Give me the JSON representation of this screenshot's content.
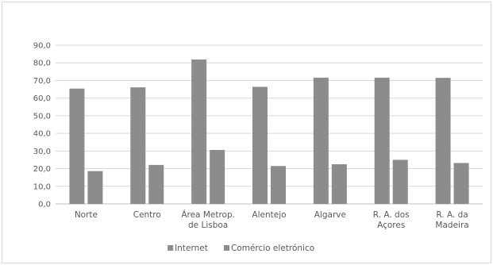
{
  "chart_data": {
    "type": "bar",
    "categories": [
      [
        "Norte"
      ],
      [
        "Centro"
      ],
      [
        "Área Metrop.",
        "de Lisboa"
      ],
      [
        "Alentejo"
      ],
      [
        "Algarve"
      ],
      [
        "R. A. dos",
        "Açores"
      ],
      [
        "R. A. da",
        "Madeira"
      ]
    ],
    "series": [
      {
        "name": "Internet",
        "color": "#8c8c8c",
        "values": [
          65.4,
          66.1,
          81.9,
          66.4,
          71.6,
          71.6,
          71.5
        ]
      },
      {
        "name": "Comércio eletrónico",
        "color": "#8c8c8c",
        "values": [
          18.6,
          22.1,
          30.6,
          21.5,
          22.5,
          25.0,
          23.2
        ]
      }
    ],
    "ylim": [
      0,
      90
    ],
    "yticks": [
      "0,0",
      "10,0",
      "20,0",
      "30,0",
      "40,0",
      "50,0",
      "60,0",
      "70,0",
      "80,0",
      "90,0"
    ],
    "grid": true,
    "legend_position": "bottom",
    "title": "",
    "xlabel": "",
    "ylabel": ""
  }
}
